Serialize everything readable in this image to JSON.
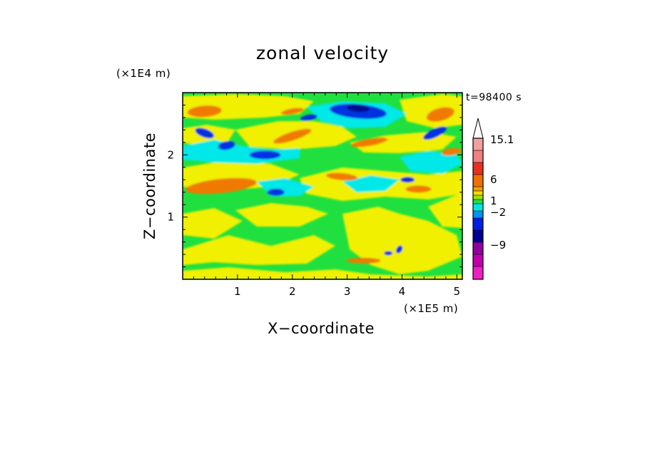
{
  "chart_data": {
    "type": "heatmap",
    "title": "zonal velocity",
    "xlabel": "X−coordinate",
    "ylabel": "Z−coordinate",
    "x_scale_label": "(×1E5 m)",
    "z_scale_label": "(×1E4 m)",
    "time_label": "t=98400 s",
    "xlim": [
      0,
      5.1
    ],
    "ylim": [
      0,
      3.0
    ],
    "x_ticks": [
      1,
      2,
      3,
      4,
      5
    ],
    "y_ticks": [
      1,
      2
    ],
    "colorbar": {
      "labels": [
        {
          "value": 15.1,
          "text": "15.1"
        },
        {
          "value": 6,
          "text": "6"
        },
        {
          "value": 1,
          "text": "1"
        },
        {
          "value": -2,
          "text": "−2"
        },
        {
          "value": -9,
          "text": "−9"
        }
      ],
      "bins": [
        {
          "color": "#f0a0a0"
        },
        {
          "color": "#f08080"
        },
        {
          "color": "#e83020"
        },
        {
          "color": "#f07000"
        },
        {
          "color": "#f0a000"
        },
        {
          "color": "#f0e000"
        },
        {
          "color": "#a0e000"
        },
        {
          "color": "#20e040"
        },
        {
          "color": "#00e8e0"
        },
        {
          "color": "#0090f0"
        },
        {
          "color": "#0020e0"
        },
        {
          "color": "#000090"
        },
        {
          "color": "#9000a0"
        },
        {
          "color": "#c000b0"
        },
        {
          "color": "#f020c0"
        }
      ]
    },
    "field_description_colors": {
      "background": "#20e040",
      "yellow": "#f0f000",
      "orange": "#f07a00",
      "cyan": "#00e8e8",
      "blue": "#0030e0",
      "darkblue": "#001090"
    },
    "features": [
      {
        "type": "orange",
        "x": 0.4,
        "z": 2.7
      },
      {
        "type": "orange",
        "x": 4.7,
        "z": 2.65
      },
      {
        "type": "orange",
        "x": 0.7,
        "z": 1.5
      },
      {
        "type": "blue",
        "x": 0.4,
        "z": 2.35
      },
      {
        "type": "blue",
        "x": 0.8,
        "z": 2.15
      },
      {
        "type": "blue",
        "x": 1.5,
        "z": 2.0
      },
      {
        "type": "blue",
        "x": 3.2,
        "z": 2.7
      },
      {
        "type": "blue",
        "x": 4.6,
        "z": 2.35
      },
      {
        "type": "blue",
        "x": 1.7,
        "z": 1.4
      },
      {
        "type": "blue",
        "x": 3.8,
        "z": 0.4
      }
    ]
  }
}
